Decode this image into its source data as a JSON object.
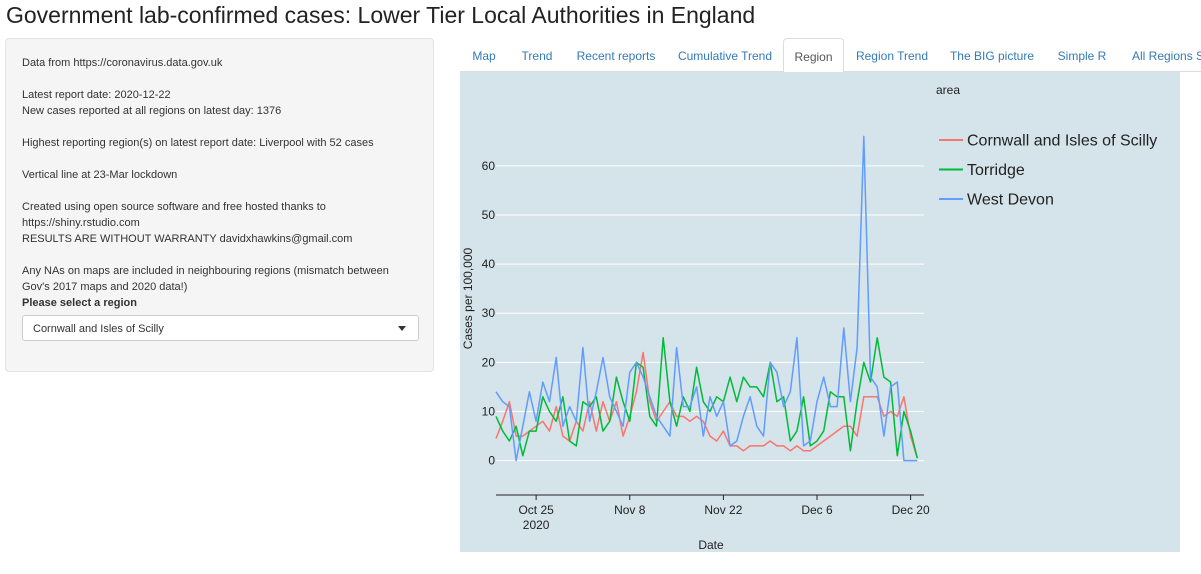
{
  "title": "Government lab-confirmed cases: Lower Tier Local Authorities in England",
  "sidebar": {
    "lines": [
      "Data from https://coronavirus.data.gov.uk",
      "Latest report date: 2020-12-22",
      "New cases reported at all regions on latest day: 1376",
      "Highest reporting region(s) on latest report date: Liverpool with 52 cases",
      "Vertical line at 23-Mar lockdown",
      "Created using open source software and free hosted thanks to",
      "https://shiny.rstudio.com",
      "RESULTS ARE WITHOUT WARRANTY davidxhawkins@gmail.com",
      "Any NAs on maps are included in neighbouring regions (mismatch between",
      "Gov's 2017 maps and 2020 data!)"
    ],
    "select_label": "Please select a region",
    "select_value": "Cornwall and Isles of Scilly"
  },
  "tabs": [
    {
      "label": "Map",
      "active": false
    },
    {
      "label": "Trend",
      "active": false
    },
    {
      "label": "Recent reports",
      "active": false
    },
    {
      "label": "Cumulative Trend",
      "active": false
    },
    {
      "label": "Region",
      "active": true
    },
    {
      "label": "Region Trend",
      "active": false
    },
    {
      "label": "The BIG picture",
      "active": false
    },
    {
      "label": "Simple R",
      "active": false
    },
    {
      "label": "All Regions Sum",
      "active": false
    }
  ],
  "chart_data": {
    "type": "line",
    "xlabel": "Date",
    "ylabel": "Cases per 100,000",
    "ylim": [
      -7,
      73
    ],
    "xlim": [
      "2020-10-19",
      "2020-12-22"
    ],
    "x_ticks": [
      {
        "date": "2020-10-25",
        "label": "Oct 25",
        "sub": "2020"
      },
      {
        "date": "2020-11-08",
        "label": "Nov 8",
        "sub": ""
      },
      {
        "date": "2020-11-22",
        "label": "Nov 22",
        "sub": ""
      },
      {
        "date": "2020-12-06",
        "label": "Dec 6",
        "sub": ""
      },
      {
        "date": "2020-12-20",
        "label": "Dec 20",
        "sub": ""
      }
    ],
    "y_ticks": [
      0,
      10,
      20,
      30,
      40,
      50,
      60
    ],
    "grid": true,
    "legend_title": "area",
    "legend_position": "right",
    "start_date": "2020-10-19",
    "series": [
      {
        "name": "Cornwall and Isles of Scilly",
        "color": "#f8766d",
        "values": [
          4.5,
          8,
          12,
          5,
          5,
          6,
          7,
          8,
          6,
          11,
          5,
          4,
          8,
          6,
          12,
          6,
          12,
          8,
          12,
          5,
          9,
          14,
          22,
          12,
          8,
          10,
          12,
          9,
          9,
          8,
          9,
          8,
          5,
          4,
          6,
          3,
          3,
          2,
          3,
          3,
          3,
          4,
          3,
          3,
          2,
          3,
          2,
          2,
          3,
          4,
          5,
          6,
          7,
          7,
          5,
          13,
          13,
          13,
          9,
          10,
          9,
          13,
          5,
          0.5
        ]
      },
      {
        "name": "Torridge",
        "color": "#00ba38",
        "values": [
          9,
          6,
          4,
          7,
          1,
          6,
          6,
          13,
          10,
          8,
          13,
          4,
          3,
          12,
          11,
          13,
          6,
          8,
          17,
          12,
          8,
          20,
          19,
          9,
          7,
          25,
          12,
          7,
          13,
          10,
          19,
          12,
          10,
          13,
          12,
          17,
          12,
          17,
          15,
          15,
          13,
          20,
          12,
          13,
          4,
          6,
          13,
          3,
          4,
          6,
          14,
          13,
          13,
          2,
          12,
          20,
          16,
          25,
          17,
          16,
          1,
          10,
          6,
          0.5
        ]
      },
      {
        "name": "West Devon",
        "color": "#619cff",
        "values": [
          14,
          12,
          11,
          0,
          7,
          14,
          8,
          16,
          12,
          21,
          7,
          11,
          8,
          23,
          8,
          14,
          21,
          13,
          10,
          7,
          18,
          20,
          17,
          13,
          9,
          7,
          5,
          23,
          11,
          11,
          15,
          5,
          13,
          9,
          12,
          3,
          4,
          9,
          13,
          7,
          5,
          20,
          18,
          11,
          14,
          25,
          3,
          4,
          12,
          17,
          11,
          11,
          27,
          12,
          23,
          66,
          17,
          15,
          5,
          15,
          16,
          0,
          0,
          0
        ]
      }
    ]
  }
}
